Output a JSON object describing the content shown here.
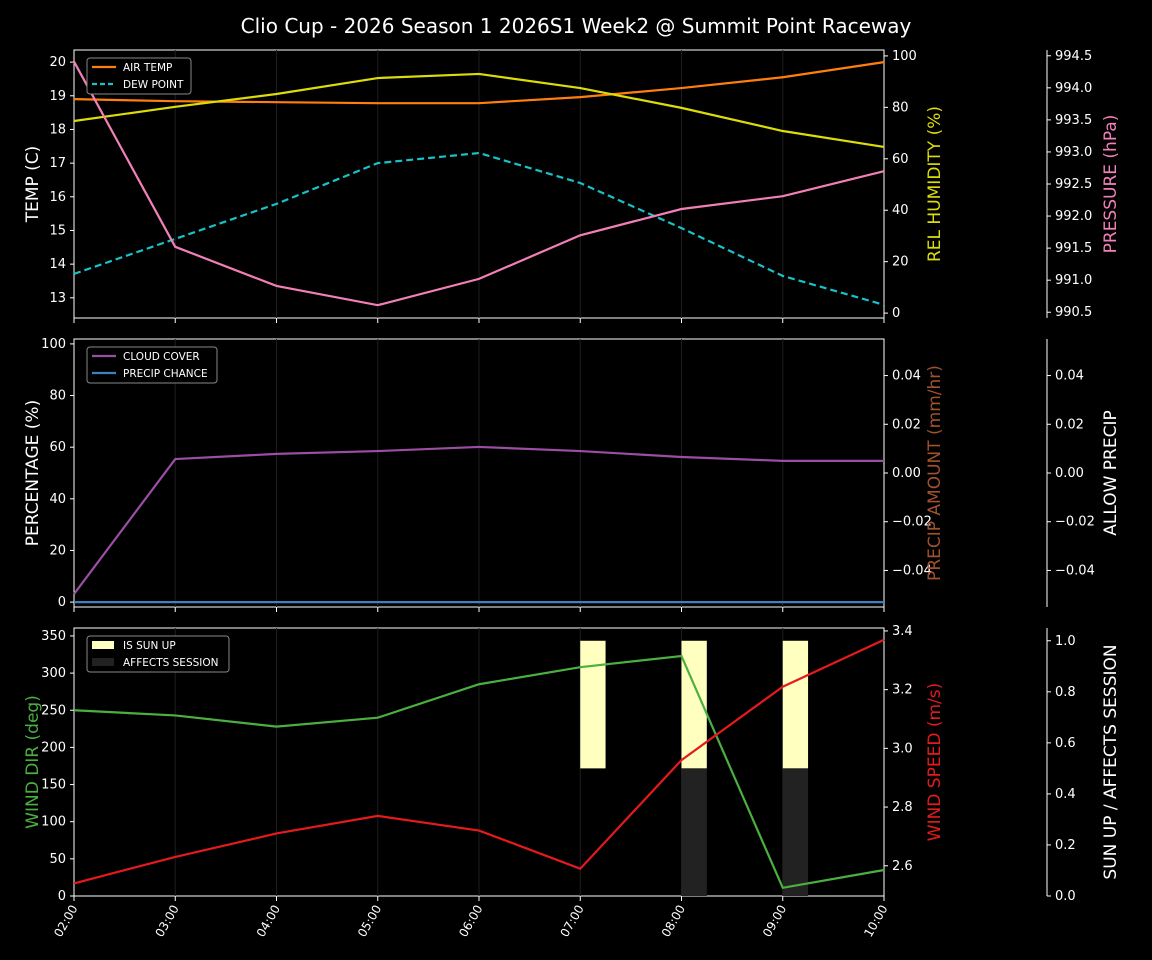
{
  "title": "Clio Cup - 2026 Season 1 2026S1 Week2 @ Summit Point Raceway",
  "chart_data": [
    {
      "type": "line",
      "panel": "top",
      "categories": [
        "02:00",
        "03:00",
        "04:00",
        "05:00",
        "06:00",
        "07:00",
        "08:00",
        "09:00",
        "10:00"
      ],
      "ylabel": "TEMP (C)",
      "ylim": [
        12.4,
        20.36
      ],
      "yticks": [
        13,
        14,
        15,
        16,
        17,
        18,
        19,
        20
      ],
      "ylabel_right": "REL HUMIDITY (%)",
      "ylim_right": [
        -1.9,
        102.3
      ],
      "yticks_right": [
        0,
        20,
        40,
        60,
        80,
        100
      ],
      "ylabel_right2": "PRESSURE (hPa)",
      "ylim_right2": [
        990.41,
        994.59
      ],
      "yticks_right2": [
        "990.5",
        "991.0",
        "991.5",
        "992.0",
        "992.5",
        "993.0",
        "993.5",
        "994.0",
        "994.5"
      ],
      "legend": "top-left",
      "series": [
        {
          "name": "AIR TEMP",
          "axis": "left",
          "color": "#ff7f0e",
          "dash": false,
          "values": [
            18.9,
            18.84,
            18.81,
            18.78,
            18.78,
            18.96,
            19.23,
            19.55,
            20.0
          ]
        },
        {
          "name": "DEW POINT",
          "axis": "left",
          "color": "#17c3c9",
          "dash": true,
          "values": [
            13.71,
            14.75,
            15.79,
            17.0,
            17.3,
            16.41,
            15.07,
            13.65,
            12.79
          ]
        },
        {
          "axis": "right",
          "color": "#dcdc0a",
          "dash": false,
          "values": [
            74.7,
            80.2,
            85.2,
            91.4,
            93.0,
            87.5,
            79.8,
            70.8,
            64.6
          ]
        },
        {
          "axis": "right2",
          "color": "#f280b8",
          "dash": false,
          "values": [
            994.41,
            991.52,
            990.91,
            990.61,
            991.02,
            991.7,
            992.11,
            992.31,
            992.7
          ]
        }
      ]
    },
    {
      "type": "line",
      "panel": "middle",
      "categories": [
        "02:00",
        "03:00",
        "04:00",
        "05:00",
        "06:00",
        "07:00",
        "08:00",
        "09:00",
        "10:00"
      ],
      "ylabel": "PERCENTAGE (%)",
      "ylim": [
        -1.9,
        101.9
      ],
      "yticks": [
        0,
        20,
        40,
        60,
        80,
        100
      ],
      "ylabel_right": "PRECIP AMOUNT (mm/hr)",
      "ylim_right": [
        -0.055,
        0.055
      ],
      "yticks_right": [
        "−0.04",
        "−0.02",
        "0.00",
        "0.02",
        "0.04"
      ],
      "ylabel_right2": "ALLOW PRECIP",
      "ylim_right2": [
        -0.055,
        0.055
      ],
      "yticks_right2": [
        "−0.04",
        "−0.02",
        "0.00",
        "0.02",
        "0.04"
      ],
      "legend": "top-left",
      "series": [
        {
          "name": "CLOUD COVER",
          "axis": "left",
          "color": "#9b4ea3",
          "dash": false,
          "values": [
            3.1,
            55.4,
            57.4,
            58.5,
            60.1,
            58.5,
            56.2,
            54.7,
            54.7
          ]
        },
        {
          "name": "PRECIP CHANCE",
          "axis": "left",
          "color": "#3f80c0",
          "dash": false,
          "values": [
            0,
            0,
            0,
            0,
            0,
            0,
            0,
            0,
            0
          ]
        }
      ]
    },
    {
      "type": "line",
      "panel": "bottom",
      "categories": [
        "02:00",
        "03:00",
        "04:00",
        "05:00",
        "06:00",
        "07:00",
        "08:00",
        "09:00",
        "10:00"
      ],
      "ylabel": "WIND DIR (deg)",
      "ylim": [
        0,
        360.7
      ],
      "yticks": [
        0,
        50,
        100,
        150,
        200,
        250,
        300,
        350
      ],
      "ylabel_right": "WIND SPEED (m/s)",
      "ylim_right": [
        2.497,
        3.41
      ],
      "yticks_right": [
        "2.6",
        "2.8",
        "3.0",
        "3.2",
        "3.4"
      ],
      "ylabel_right2": "SUN UP / AFFECTS SESSION",
      "ylim_right2": [
        0,
        1.05
      ],
      "yticks_right2": [
        "0.0",
        "0.2",
        "0.4",
        "0.6",
        "0.8",
        "1.0"
      ],
      "legend": "top-left",
      "series": [
        {
          "axis": "left",
          "color": "#4bb040",
          "dash": false,
          "values": [
            250,
            243,
            228,
            240,
            285,
            308,
            323,
            11,
            35
          ]
        },
        {
          "axis": "right",
          "color": "#e41a1c",
          "dash": false,
          "values": [
            2.54,
            2.63,
            2.71,
            2.77,
            2.72,
            2.59,
            2.96,
            3.21,
            3.37
          ]
        }
      ],
      "bars": [
        {
          "name": "IS SUN UP",
          "color": "#ffffc0",
          "values": [
            0,
            0,
            0,
            0,
            0,
            1,
            1,
            1,
            0
          ]
        },
        {
          "name": "AFFECTS SESSION",
          "color": "#222222",
          "values": [
            0,
            0,
            0,
            0,
            0,
            0,
            1,
            1,
            0
          ]
        }
      ]
    }
  ]
}
